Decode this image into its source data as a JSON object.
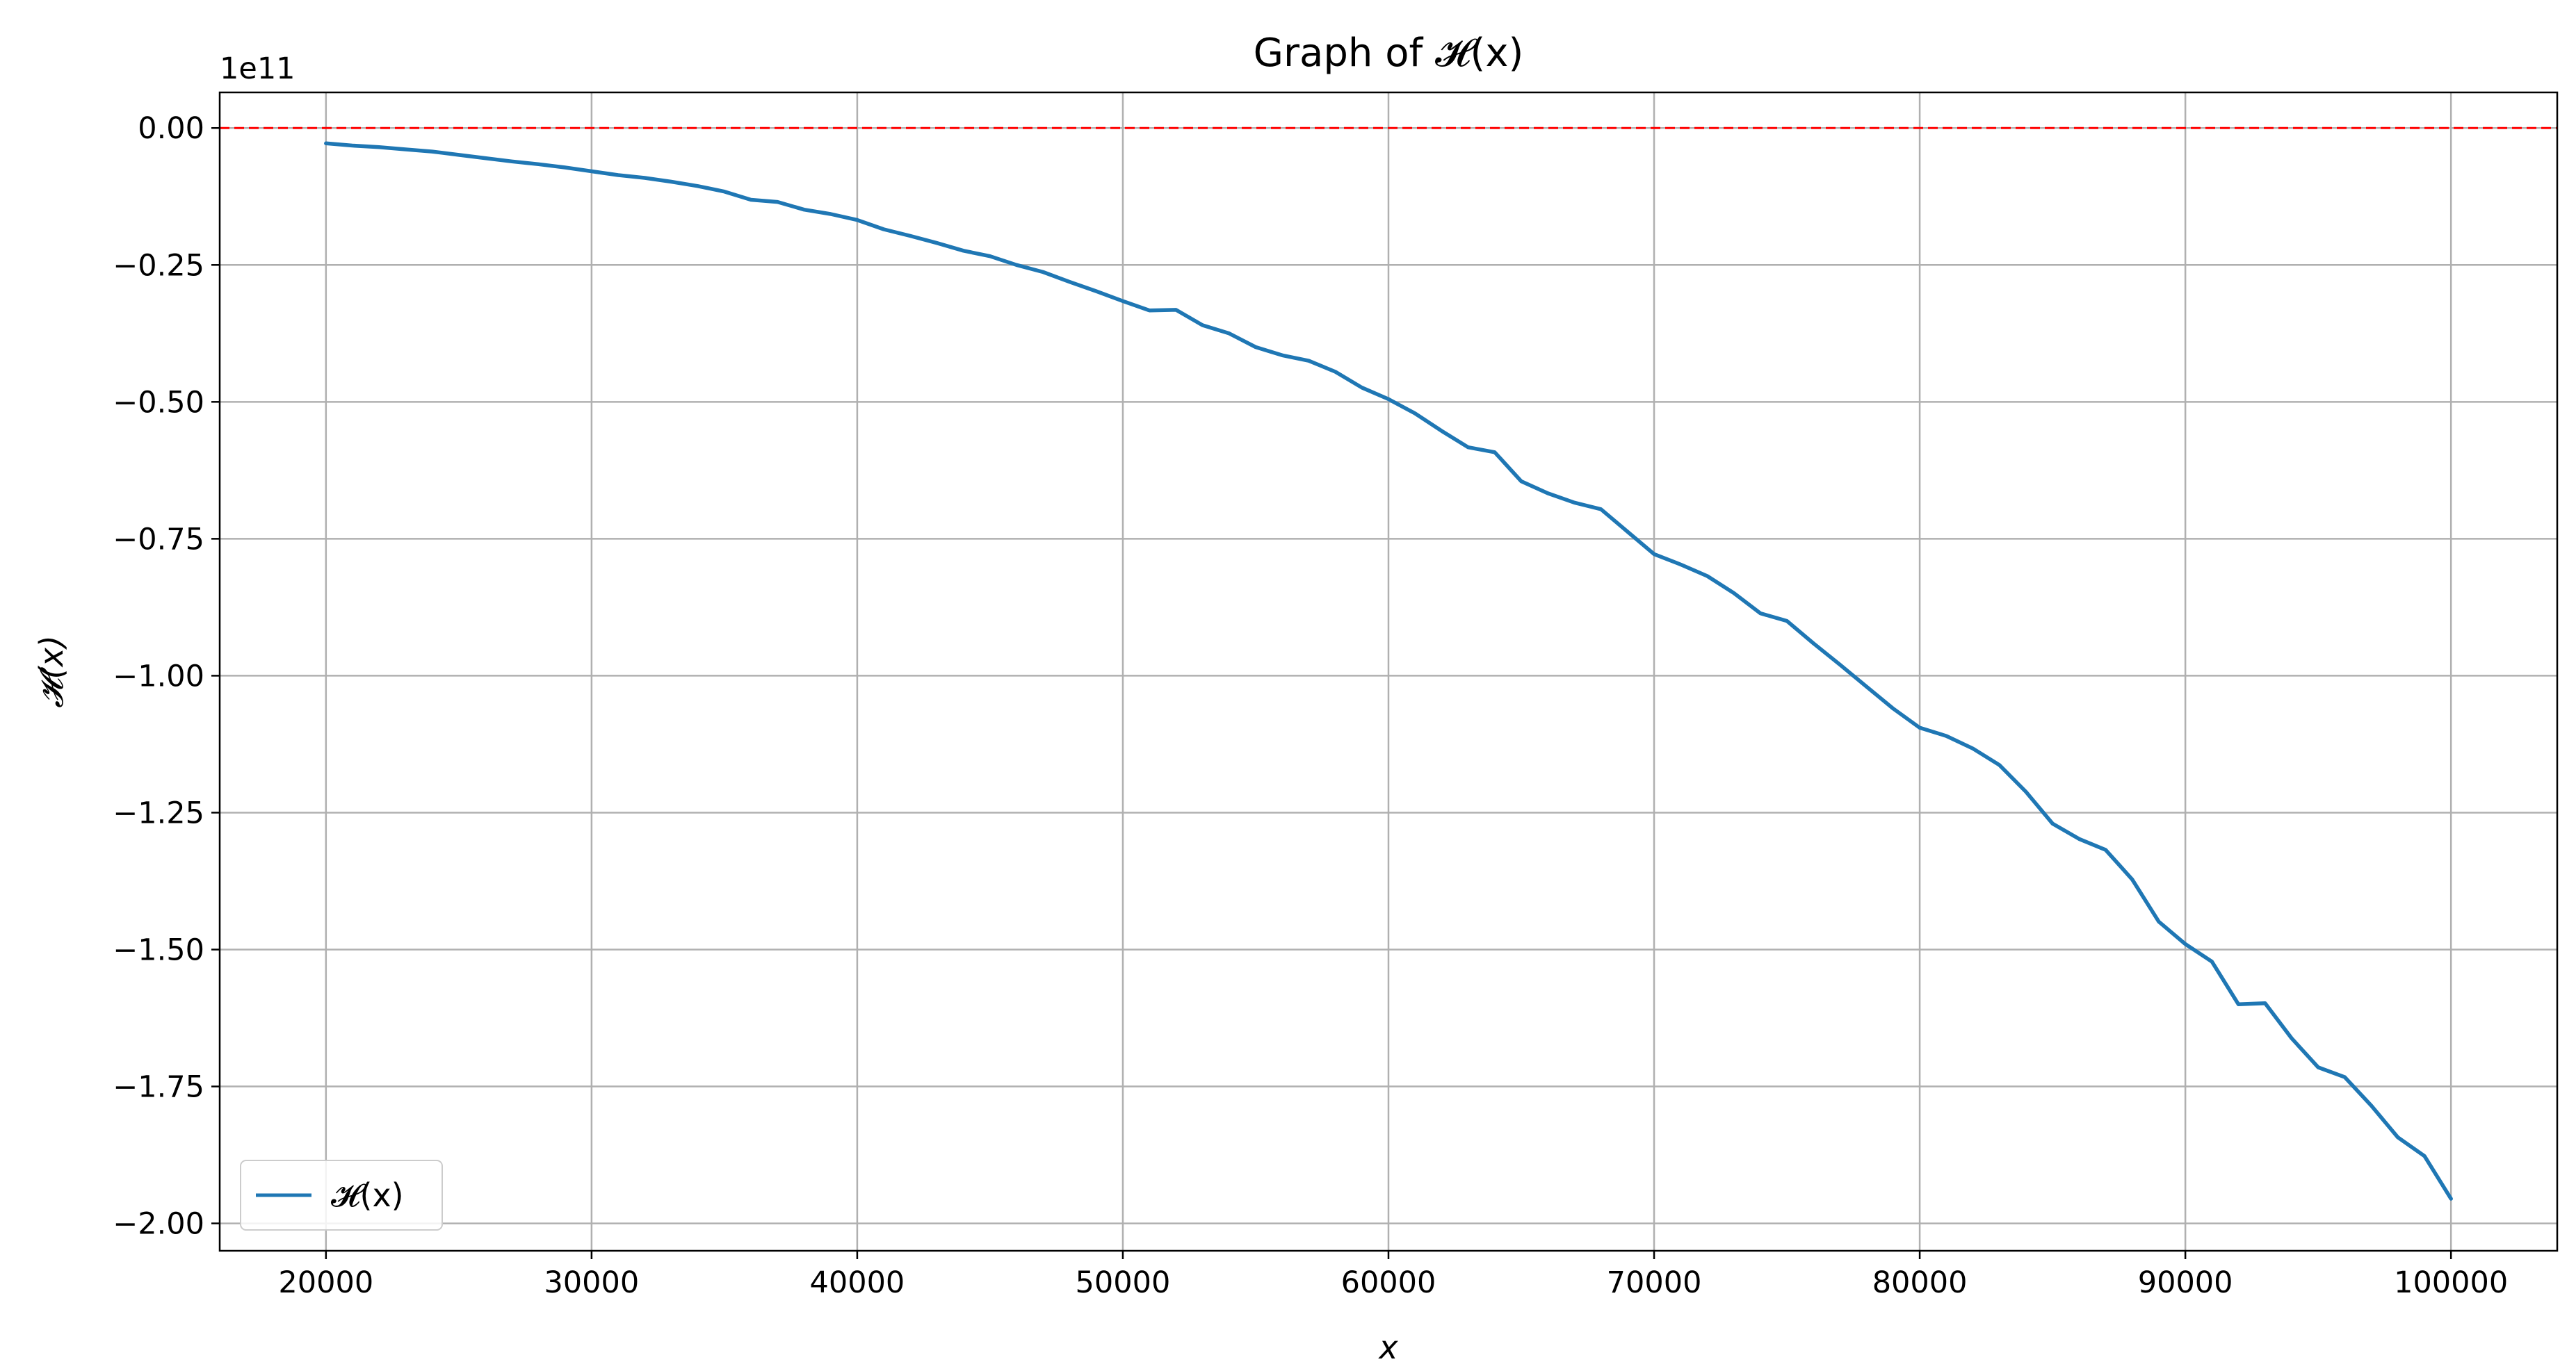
{
  "chart_data": {
    "type": "line",
    "title": "Graph of 𝓗(x)",
    "xlabel": "x",
    "ylabel": "𝓗(x)",
    "y_offset_label": "1e11",
    "y_scale": 100000000000,
    "xlim": [
      16000,
      104000
    ],
    "ylim": [
      -2.05,
      0.065
    ],
    "x_ticks": [
      20000,
      30000,
      40000,
      50000,
      60000,
      70000,
      80000,
      90000,
      100000
    ],
    "x_tick_labels": [
      "20000",
      "30000",
      "40000",
      "50000",
      "60000",
      "70000",
      "80000",
      "90000",
      "100000"
    ],
    "y_ticks": [
      0,
      -0.25,
      -0.5,
      -0.75,
      -1.0,
      -1.25,
      -1.5,
      -1.75,
      -2.0
    ],
    "y_tick_labels": [
      "0.00",
      "−0.25",
      "−0.50",
      "−0.75",
      "−1.00",
      "−1.25",
      "−1.50",
      "−1.75",
      "−2.00"
    ],
    "grid": true,
    "legend": {
      "placement": "lower-left",
      "entries": [
        "𝓗(x)"
      ]
    },
    "colors": {
      "series": "#1f77b4",
      "reference_line": "#ff0000",
      "grid": "#b0b0b0"
    },
    "reference_line": {
      "y": 0,
      "style": "dashed"
    },
    "series": [
      {
        "name": "𝓗(x)",
        "x": [
          20000,
          21000,
          22000,
          23000,
          24000,
          25000,
          26000,
          27000,
          28000,
          29000,
          30000,
          31000,
          32000,
          33000,
          34000,
          35000,
          36000,
          37000,
          38000,
          39000,
          40000,
          41000,
          42000,
          43000,
          44000,
          45000,
          46000,
          47000,
          48000,
          49000,
          50000,
          51000,
          52000,
          53000,
          54000,
          55000,
          56000,
          57000,
          58000,
          59000,
          60000,
          61000,
          62000,
          63000,
          64000,
          65000,
          66000,
          67000,
          68000,
          69000,
          70000,
          71000,
          72000,
          73000,
          74000,
          75000,
          76000,
          77000,
          78000,
          79000,
          80000,
          81000,
          82000,
          83000,
          84000,
          85000,
          86000,
          87000,
          88000,
          89000,
          90000,
          91000,
          92000,
          93000,
          94000,
          95000,
          96000,
          97000,
          98000,
          99000,
          100000
        ],
        "y": [
          -0.028,
          -0.032,
          -0.035,
          -0.039,
          -0.043,
          -0.049,
          -0.055,
          -0.061,
          -0.066,
          -0.072,
          -0.079,
          -0.086,
          -0.091,
          -0.098,
          -0.106,
          -0.116,
          -0.131,
          -0.135,
          -0.149,
          -0.157,
          -0.168,
          -0.185,
          -0.197,
          -0.21,
          -0.224,
          -0.234,
          -0.25,
          -0.263,
          -0.281,
          -0.298,
          -0.316,
          -0.333,
          -0.332,
          -0.36,
          -0.375,
          -0.4,
          -0.415,
          -0.425,
          -0.445,
          -0.474,
          -0.495,
          -0.521,
          -0.553,
          -0.583,
          -0.592,
          -0.645,
          -0.667,
          -0.684,
          -0.696,
          -0.737,
          -0.778,
          -0.797,
          -0.818,
          -0.849,
          -0.886,
          -0.9,
          -0.941,
          -0.98,
          -1.02,
          -1.06,
          -1.095,
          -1.11,
          -1.133,
          -1.163,
          -1.212,
          -1.27,
          -1.298,
          -1.318,
          -1.372,
          -1.449,
          -1.49,
          -1.522,
          -1.6,
          -1.598,
          -1.662,
          -1.715,
          -1.733,
          -1.785,
          -1.843,
          -1.877,
          -1.955
        ]
      }
    ]
  }
}
